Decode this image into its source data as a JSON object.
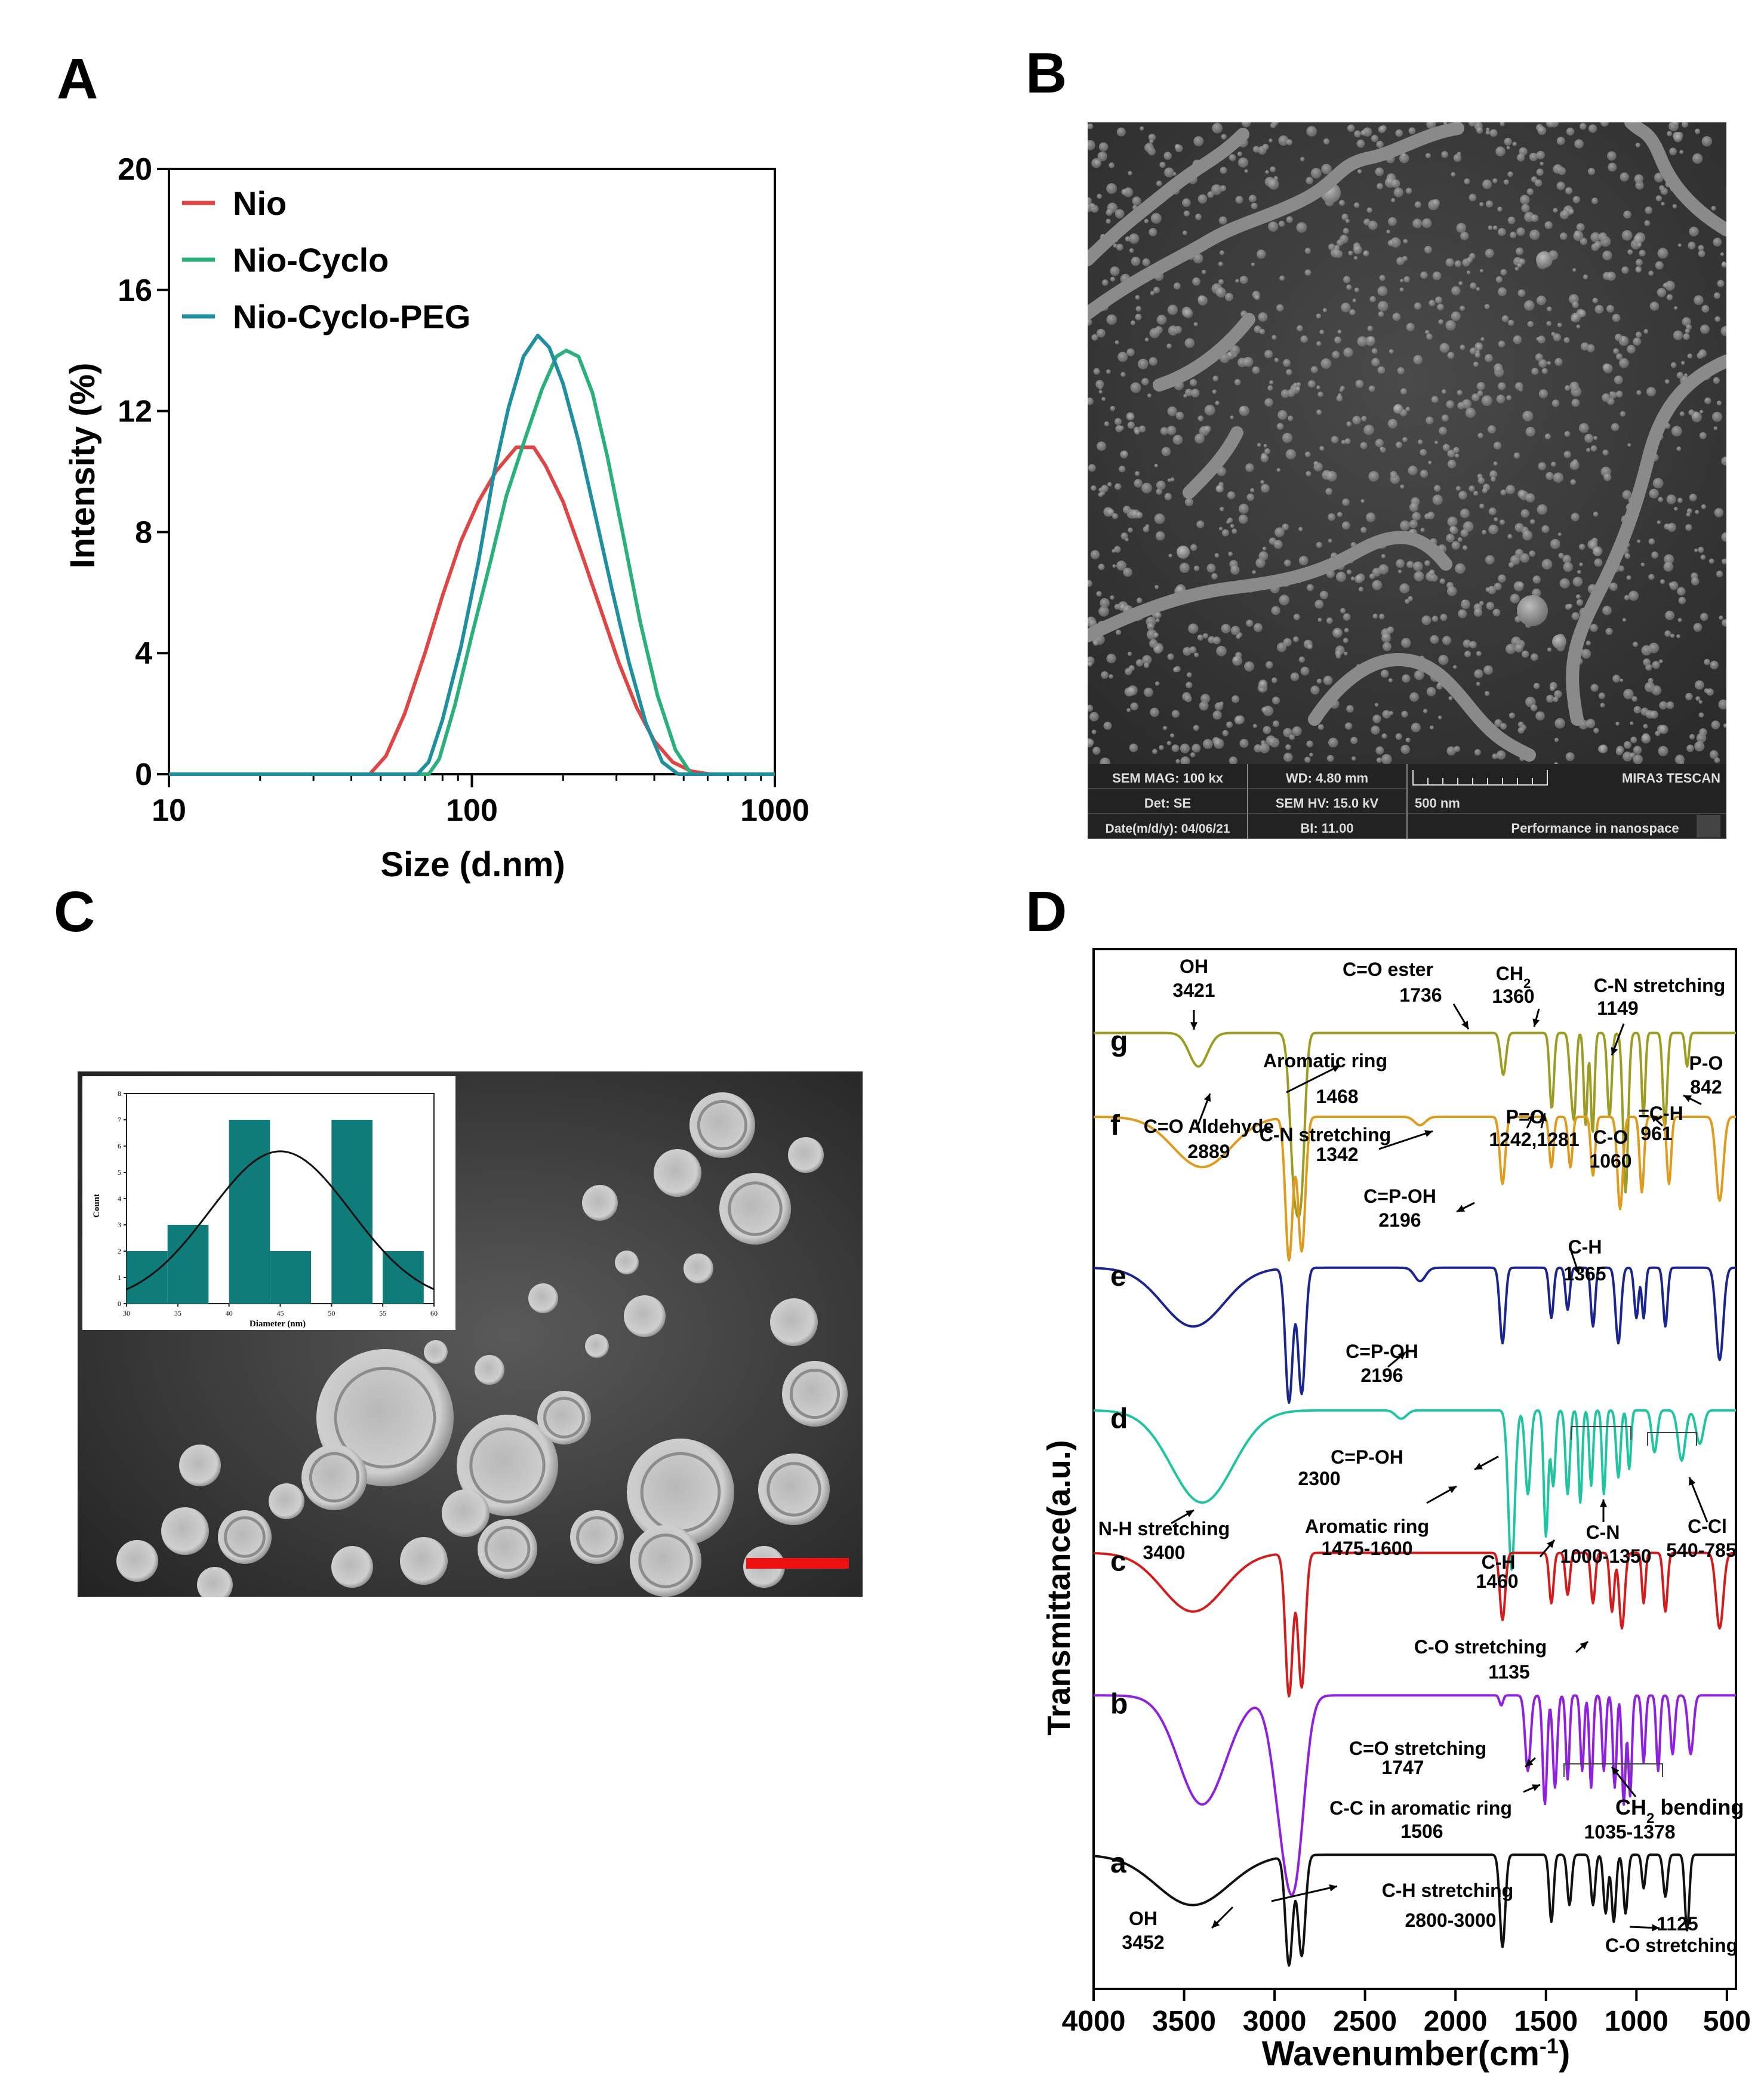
{
  "panels": {
    "A": "A",
    "B": "B",
    "C": "C",
    "D": "D"
  },
  "colors": {
    "nio": "#e04545",
    "nio_cyclo": "#2ab07a",
    "nio_cyclo_peg": "#1f8fa0",
    "bar": "#0f7c7a",
    "scale_red": "#ee1111",
    "g": "#9c9c22",
    "f": "#e09a1c",
    "e": "#1a2590",
    "d": "#1fc4a0",
    "c": "#d41c1c",
    "b": "#9020e0",
    "a": "#111111"
  },
  "chart_data": [
    {
      "id": "A",
      "type": "line",
      "xscale": "log",
      "xlabel": "Size (d.nm)",
      "ylabel": "Intensity (%)",
      "xlim": [
        10,
        1000
      ],
      "ylim": [
        0,
        20
      ],
      "xticks": [
        "10",
        "100",
        "1000"
      ],
      "yticks": [
        "0",
        "4",
        "8",
        "12",
        "16",
        "20"
      ],
      "legend": "top-left",
      "series": [
        {
          "name": "Nio",
          "color_key": "nio",
          "x": [
            10,
            46,
            52,
            60,
            70,
            80,
            92,
            105,
            120,
            140,
            160,
            175,
            200,
            230,
            265,
            305,
            350,
            400,
            460,
            530,
            610,
            1000
          ],
          "y": [
            0,
            0,
            0.6,
            2,
            4,
            5.9,
            7.7,
            9,
            10,
            10.8,
            10.8,
            10.2,
            9,
            7.3,
            5.5,
            3.7,
            2.2,
            1.1,
            0.4,
            0.1,
            0,
            0
          ]
        },
        {
          "name": "Nio-Cyclo",
          "color_key": "nio_cyclo",
          "x": [
            10,
            72,
            78,
            88,
            100,
            115,
            130,
            150,
            170,
            190,
            205,
            225,
            250,
            280,
            320,
            360,
            410,
            470,
            530,
            1000
          ],
          "y": [
            0,
            0,
            0.5,
            2.3,
            4.6,
            7,
            9.2,
            11.1,
            12.7,
            13.8,
            14,
            13.8,
            12.6,
            10.5,
            7.6,
            5,
            2.6,
            0.8,
            0,
            0
          ]
        },
        {
          "name": "Nio-Cyclo-PEG",
          "color_key": "nio_cyclo_peg",
          "x": [
            10,
            66,
            72,
            80,
            92,
            105,
            118,
            132,
            148,
            165,
            180,
            200,
            225,
            255,
            290,
            330,
            375,
            425,
            480,
            1000
          ],
          "y": [
            0,
            0,
            0.4,
            1.8,
            4.2,
            7,
            9.9,
            12.1,
            13.8,
            14.5,
            14.1,
            12.9,
            11,
            8.6,
            6.1,
            3.7,
            1.7,
            0.4,
            0,
            0
          ]
        }
      ]
    },
    {
      "id": "C-inset",
      "type": "bar",
      "xlabel": "Diameter (nm)",
      "ylabel": "Count",
      "xlim": [
        30,
        60
      ],
      "ylim": [
        0,
        8
      ],
      "xticks": [
        "30",
        "35",
        "40",
        "45",
        "50",
        "55",
        "60"
      ],
      "yticks": [
        "0",
        "1",
        "2",
        "3",
        "4",
        "5",
        "6",
        "7",
        "8"
      ],
      "bins": [
        [
          30,
          34
        ],
        [
          34,
          38
        ],
        [
          40,
          44
        ],
        [
          44,
          48
        ],
        [
          50,
          54
        ],
        [
          55,
          59
        ]
      ],
      "values": [
        2,
        3,
        7,
        2,
        7,
        2
      ],
      "fit": {
        "type": "gaussian",
        "mean": 45,
        "sd": 6.9,
        "peak": 5.8
      }
    },
    {
      "id": "D",
      "type": "line",
      "xlabel": "Wavenumber(cm",
      "xlabel_sup": "-1",
      "xlabel_end": ")",
      "ylabel": "Transmittance(a.u.)",
      "xlim": [
        4000,
        450
      ],
      "xticks": [
        "4000",
        "3500",
        "3000",
        "2500",
        "2000",
        "1500",
        "1000",
        "500"
      ],
      "series": [
        {
          "name": "g",
          "color_key": "g",
          "baseline": 5.7,
          "peaks": [
            [
              3421,
              0.2,
              50
            ],
            [
              2889,
              0.9,
              25
            ],
            [
              2850,
              0.7,
              20
            ],
            [
              1736,
              0.25,
              15
            ],
            [
              1468,
              0.45,
              12
            ],
            [
              1360,
              0.3,
              12
            ],
            [
              1342,
              0.4,
              10
            ],
            [
              1281,
              0.55,
              10
            ],
            [
              1242,
              0.6,
              10
            ],
            [
              1149,
              0.5,
              12
            ],
            [
              1060,
              0.95,
              14
            ],
            [
              961,
              0.5,
              10
            ],
            [
              842,
              0.55,
              12
            ],
            [
              720,
              0.2,
              10
            ]
          ]
        },
        {
          "name": "f",
          "color_key": "f",
          "baseline": 5.2,
          "peaks": [
            [
              3400,
              0.3,
              160
            ],
            [
              2920,
              0.85,
              20
            ],
            [
              2850,
              0.8,
              20
            ],
            [
              2196,
              0.05,
              30
            ],
            [
              1740,
              0.4,
              15
            ],
            [
              1470,
              0.3,
              12
            ],
            [
              1365,
              0.3,
              12
            ],
            [
              1240,
              0.35,
              12
            ],
            [
              1090,
              0.55,
              15
            ],
            [
              970,
              0.45,
              12
            ],
            [
              820,
              0.4,
              12
            ],
            [
              540,
              0.5,
              20
            ]
          ]
        },
        {
          "name": "e",
          "color_key": "e",
          "baseline": 4.3,
          "peaks": [
            [
              3450,
              0.35,
              170
            ],
            [
              2920,
              0.8,
              20
            ],
            [
              2850,
              0.75,
              20
            ],
            [
              2196,
              0.08,
              30
            ],
            [
              1740,
              0.45,
              15
            ],
            [
              1470,
              0.3,
              12
            ],
            [
              1380,
              0.25,
              12
            ],
            [
              1240,
              0.35,
              12
            ],
            [
              1100,
              0.45,
              15
            ],
            [
              1000,
              0.3,
              12
            ],
            [
              960,
              0.3,
              10
            ],
            [
              840,
              0.35,
              12
            ],
            [
              540,
              0.55,
              20
            ]
          ]
        },
        {
          "name": "d",
          "color_key": "d",
          "baseline": 3.45,
          "peaks": [
            [
              3400,
              0.55,
              170
            ],
            [
              2300,
              0.05,
              30
            ],
            [
              1690,
              0.95,
              18
            ],
            [
              1600,
              0.5,
              15
            ],
            [
              1500,
              0.75,
              12
            ],
            [
              1460,
              0.45,
              12
            ],
            [
              1380,
              0.5,
              12
            ],
            [
              1310,
              0.55,
              10
            ],
            [
              1250,
              0.45,
              10
            ],
            [
              1180,
              0.5,
              10
            ],
            [
              1100,
              0.4,
              12
            ],
            [
              1040,
              0.35,
              10
            ],
            [
              900,
              0.25,
              15
            ],
            [
              750,
              0.3,
              20
            ],
            [
              650,
              0.2,
              20
            ]
          ]
        },
        {
          "name": "c",
          "color_key": "c",
          "baseline": 2.6,
          "peaks": [
            [
              3450,
              0.35,
              170
            ],
            [
              2920,
              0.85,
              20
            ],
            [
              2850,
              0.8,
              20
            ],
            [
              1740,
              0.4,
              15
            ],
            [
              1470,
              0.3,
              12
            ],
            [
              1380,
              0.25,
              12
            ],
            [
              1240,
              0.3,
              12
            ],
            [
              1135,
              0.35,
              12
            ],
            [
              1080,
              0.45,
              15
            ],
            [
              960,
              0.3,
              10
            ],
            [
              840,
              0.35,
              12
            ],
            [
              540,
              0.45,
              20
            ]
          ]
        },
        {
          "name": "b",
          "color_key": "b",
          "baseline": 1.75,
          "peaks": [
            [
              3400,
              0.65,
              130
            ],
            [
              2950,
              0.7,
              60
            ],
            [
              2880,
              0.75,
              50
            ],
            [
              1747,
              0.06,
              10
            ],
            [
              1600,
              0.45,
              15
            ],
            [
              1506,
              0.65,
              12
            ],
            [
              1450,
              0.55,
              12
            ],
            [
              1380,
              0.5,
              10
            ],
            [
              1300,
              0.45,
              10
            ],
            [
              1250,
              0.55,
              10
            ],
            [
              1180,
              0.45,
              10
            ],
            [
              1120,
              0.55,
              10
            ],
            [
              1070,
              0.65,
              10
            ],
            [
              1035,
              0.6,
              10
            ],
            [
              960,
              0.4,
              10
            ],
            [
              880,
              0.45,
              10
            ],
            [
              800,
              0.35,
              12
            ],
            [
              700,
              0.35,
              15
            ]
          ]
        },
        {
          "name": "a",
          "color_key": "a",
          "baseline": 0.8,
          "peaks": [
            [
              3452,
              0.3,
              200
            ],
            [
              2920,
              0.65,
              20
            ],
            [
              2850,
              0.6,
              20
            ],
            [
              1740,
              0.55,
              15
            ],
            [
              1470,
              0.4,
              12
            ],
            [
              1370,
              0.3,
              12
            ],
            [
              1240,
              0.3,
              12
            ],
            [
              1170,
              0.35,
              12
            ],
            [
              1125,
              0.4,
              12
            ],
            [
              1060,
              0.35,
              12
            ],
            [
              960,
              0.2,
              10
            ],
            [
              840,
              0.25,
              12
            ],
            [
              720,
              0.45,
              12
            ]
          ]
        }
      ],
      "annotations": {
        "g": [
          "OH",
          "3421",
          "C=O ester",
          "1736",
          "CH",
          "2",
          "1360",
          "C-N stretching",
          "1149",
          "Aromatic ring",
          "1468",
          "P-O",
          "842",
          "C=O Aldehyde",
          "2889",
          "C-N stretching",
          "1342",
          "P=O",
          "1242,1281",
          "=C-H",
          "961",
          "C-O",
          "1060"
        ],
        "f": [
          "C=P-OH",
          "2196",
          "C-H",
          "1365"
        ],
        "e": [
          "C=P-OH",
          "2196"
        ],
        "d": [
          "C=P-OH",
          "2300",
          "N-H stretching",
          "3400",
          "Aromatic ring",
          "1475-1600",
          "C-H",
          "1460",
          "C-N",
          "1000-1350",
          "C-Cl",
          "540-785"
        ],
        "c": [
          "C-O stretching",
          "1135"
        ],
        "b": [
          "C=O stretching",
          "1747",
          "C-C in aromatic ring",
          "1506",
          "CH",
          "2",
          " bending",
          "1035-1378"
        ],
        "a": [
          "C-H stretching",
          "2800-3000",
          "OH",
          "3452",
          "1125",
          "C-O stretching"
        ]
      }
    }
  ],
  "sem": {
    "mag": "SEM MAG: 100 kx",
    "det": "Det: SE",
    "date": "Date(m/d/y): 04/06/21",
    "wd": "WD: 4.80 mm",
    "hv": "SEM HV: 15.0 kV",
    "bi": "BI: 11.00",
    "scale": "500 nm",
    "brand": "MIRA3 TESCAN",
    "slogan": "Performance in nanospace"
  }
}
